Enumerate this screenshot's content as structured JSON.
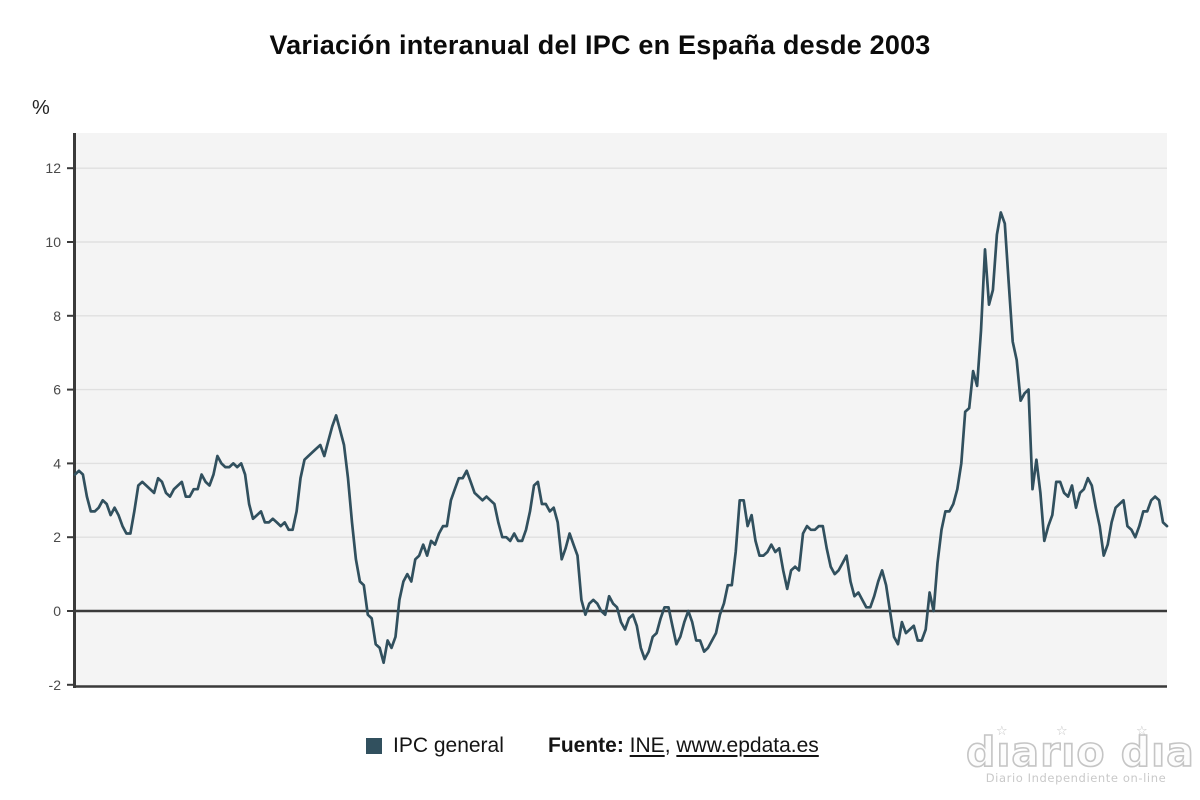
{
  "header": {
    "title": "Variación interanual del IPC en España desde 2003"
  },
  "chart": {
    "y_unit_label": "%",
    "y_ticks": [
      12,
      10,
      8,
      6,
      4,
      2,
      0,
      -2
    ],
    "line_color": "#31505e",
    "plot_bg": "#f4f4f4",
    "grid_color": "#e0e0e0",
    "axis_color": "#3a3a3a",
    "tick_label_color": "#4a4a4a"
  },
  "chart_data": {
    "type": "line",
    "title": "Variación interanual del IPC en España desde 2003",
    "xlabel": "",
    "ylabel": "%",
    "ylim": [
      -2,
      13
    ],
    "grid": true,
    "frequency": "monthly",
    "x_start": "2003-01",
    "x_end": "2026-01",
    "legend": [
      "IPC general"
    ],
    "legend_position": "bottom",
    "series": [
      {
        "name": "IPC general",
        "color": "#31505e",
        "values": [
          3.7,
          3.8,
          3.7,
          3.1,
          2.7,
          2.7,
          2.8,
          3.0,
          2.9,
          2.6,
          2.8,
          2.6,
          2.3,
          2.1,
          2.1,
          2.7,
          3.4,
          3.5,
          3.4,
          3.3,
          3.2,
          3.6,
          3.5,
          3.2,
          3.1,
          3.3,
          3.4,
          3.5,
          3.1,
          3.1,
          3.3,
          3.3,
          3.7,
          3.5,
          3.4,
          3.7,
          4.2,
          4.0,
          3.9,
          3.9,
          4.0,
          3.9,
          4.0,
          3.7,
          2.9,
          2.5,
          2.6,
          2.7,
          2.4,
          2.4,
          2.5,
          2.4,
          2.3,
          2.4,
          2.2,
          2.2,
          2.7,
          3.6,
          4.1,
          4.2,
          4.3,
          4.4,
          4.5,
          4.2,
          4.6,
          5.0,
          5.3,
          4.9,
          4.5,
          3.6,
          2.4,
          1.4,
          0.8,
          0.7,
          -0.1,
          -0.2,
          -0.9,
          -1.0,
          -1.4,
          -0.8,
          -1.0,
          -0.7,
          0.3,
          0.8,
          1.0,
          0.8,
          1.4,
          1.5,
          1.8,
          1.5,
          1.9,
          1.8,
          2.1,
          2.3,
          2.3,
          3.0,
          3.3,
          3.6,
          3.6,
          3.8,
          3.5,
          3.2,
          3.1,
          3.0,
          3.1,
          3.0,
          2.9,
          2.4,
          2.0,
          2.0,
          1.9,
          2.1,
          1.9,
          1.9,
          2.2,
          2.7,
          3.4,
          3.5,
          2.9,
          2.9,
          2.7,
          2.8,
          2.4,
          1.4,
          1.7,
          2.1,
          1.8,
          1.5,
          0.3,
          -0.1,
          0.2,
          0.3,
          0.2,
          0.0,
          -0.1,
          0.4,
          0.2,
          0.1,
          -0.3,
          -0.5,
          -0.2,
          -0.1,
          -0.4,
          -1.0,
          -1.3,
          -1.1,
          -0.7,
          -0.6,
          -0.2,
          0.1,
          0.1,
          -0.4,
          -0.9,
          -0.7,
          -0.3,
          0.0,
          -0.3,
          -0.8,
          -0.8,
          -1.1,
          -1.0,
          -0.8,
          -0.6,
          -0.1,
          0.2,
          0.7,
          0.7,
          1.6,
          3.0,
          3.0,
          2.3,
          2.6,
          1.9,
          1.5,
          1.5,
          1.6,
          1.8,
          1.6,
          1.7,
          1.1,
          0.6,
          1.1,
          1.2,
          1.1,
          2.1,
          2.3,
          2.2,
          2.2,
          2.3,
          2.3,
          1.7,
          1.2,
          1.0,
          1.1,
          1.3,
          1.5,
          0.8,
          0.4,
          0.5,
          0.3,
          0.1,
          0.1,
          0.4,
          0.8,
          1.1,
          0.7,
          0.0,
          -0.7,
          -0.9,
          -0.3,
          -0.6,
          -0.5,
          -0.4,
          -0.8,
          -0.8,
          -0.5,
          0.5,
          0.0,
          1.3,
          2.2,
          2.7,
          2.7,
          2.9,
          3.3,
          4.0,
          5.4,
          5.5,
          6.5,
          6.1,
          7.6,
          9.8,
          8.3,
          8.7,
          10.2,
          10.8,
          10.5,
          8.9,
          7.3,
          6.8,
          5.7,
          5.9,
          6.0,
          3.3,
          4.1,
          3.2,
          1.9,
          2.3,
          2.6,
          3.5,
          3.5,
          3.2,
          3.1,
          3.4,
          2.8,
          3.2,
          3.3,
          3.6,
          3.4,
          2.8,
          2.3,
          1.5,
          1.8,
          2.4,
          2.8,
          2.9,
          3.0,
          2.3,
          2.2,
          2.0,
          2.3,
          2.7,
          2.7,
          3.0,
          3.1,
          3.0,
          2.4,
          2.3
        ]
      }
    ]
  },
  "legend": {
    "label": "IPC general",
    "swatch_color": "#31505e"
  },
  "source": {
    "prefix": "Fuente:",
    "link1": "INE",
    "separator": ", ",
    "link2": "www.epdata.es"
  },
  "watermark": {
    "logo_text": "dıarıo dıa",
    "star": "☆",
    "tagline": "Diario Independiente on-line"
  }
}
